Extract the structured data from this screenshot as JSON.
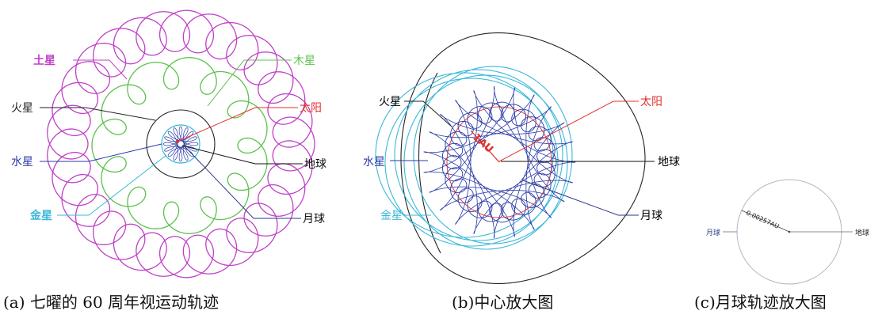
{
  "panel_a": {
    "labels": {
      "saturn": "土星",
      "jupiter": "木星",
      "mars": "火星",
      "sun": "太阳",
      "mercury": "水星",
      "earth": "地球",
      "venus": "金星",
      "moon": "月球"
    },
    "caption": "(a) 七曜的 60 周年视运动轨迹"
  },
  "panel_b": {
    "labels": {
      "mars": "火星",
      "sun": "太阳",
      "mercury": "水星",
      "earth": "地球",
      "venus": "金星",
      "moon": "月球"
    },
    "scale_label": "1AU",
    "caption": "(b)中心放大图"
  },
  "panel_c": {
    "labels": {
      "moon": "月球",
      "earth": "地球"
    },
    "radius_label": "0.00257AU",
    "caption": "(c)月球轨迹放大图"
  },
  "colors": {
    "saturn": "#c040c8",
    "jupiter": "#5cc04c",
    "mars": "#222222",
    "sun": "#e03030",
    "mercury": "#2a3aa8",
    "venus": "#3ab8d8",
    "earth": "#111111",
    "moon": "#2a3a88",
    "moon_orbit": "#b4b4c8"
  }
}
